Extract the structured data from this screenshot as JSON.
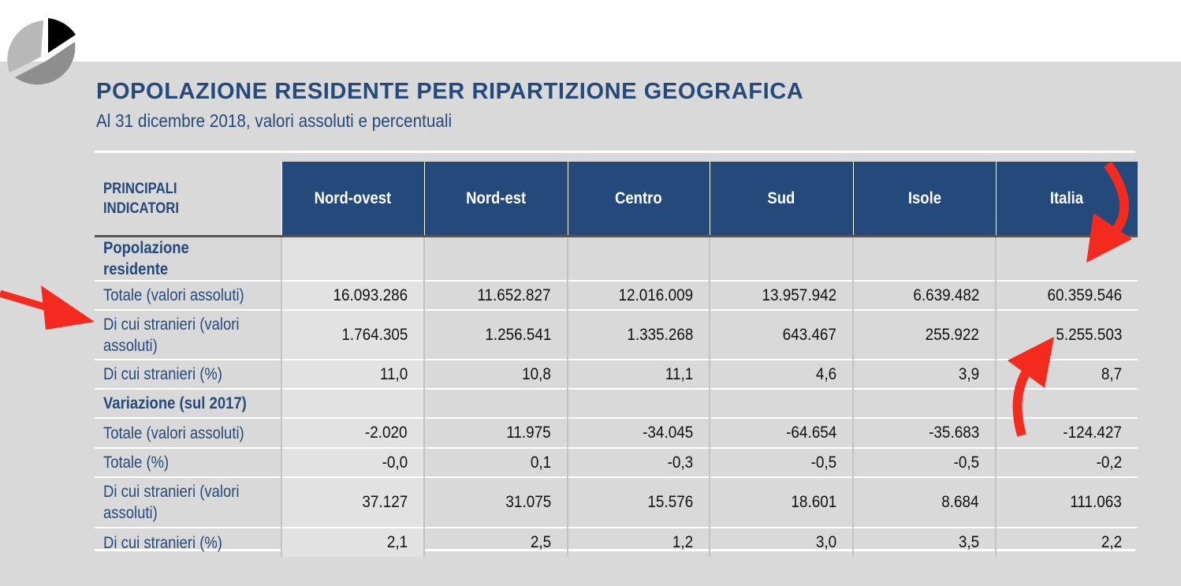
{
  "title": "POPOLAZIONE RESIDENTE PER RIPARTIZIONE GEOGRAFICA",
  "subtitle": "Al 31 dicembre 2018, valori assoluti e percentuali",
  "table": {
    "corner": "PRINCIPALI INDICATORI",
    "columns": [
      "Nord-ovest",
      "Nord-est",
      "Centro",
      "Sud",
      "Isole",
      "Italia"
    ],
    "rows": [
      {
        "label": "Popolazione residente",
        "section": true,
        "values": [
          "",
          "",
          "",
          "",
          "",
          ""
        ]
      },
      {
        "label": "Totale (valori assoluti)",
        "values": [
          "16.093.286",
          "11.652.827",
          "12.016.009",
          "13.957.942",
          "6.639.482",
          "60.359.546"
        ]
      },
      {
        "label": "Di cui stranieri (valori assoluti)",
        "values": [
          "1.764.305",
          "1.256.541",
          "1.335.268",
          "643.467",
          "255.922",
          "5.255.503"
        ]
      },
      {
        "label": "Di cui stranieri (%)",
        "values": [
          "11,0",
          "10,8",
          "11,1",
          "4,6",
          "3,9",
          "8,7"
        ]
      },
      {
        "label": "Variazione (sul 2017)",
        "section": true,
        "values": [
          "",
          "",
          "",
          "",
          "",
          ""
        ]
      },
      {
        "label": "Totale (valori assoluti)",
        "values": [
          "-2.020",
          "11.975",
          "-34.045",
          "-64.654",
          "-35.683",
          "-124.427"
        ]
      },
      {
        "label": "Totale (%)",
        "values": [
          "-0,0",
          "0,1",
          "-0,3",
          "-0,5",
          "-0,5",
          "-0,2"
        ]
      },
      {
        "label": "Di cui stranieri (valori assoluti)",
        "values": [
          "37.127",
          "31.075",
          "15.576",
          "18.601",
          "8.684",
          "111.063"
        ]
      },
      {
        "label": "Di cui stranieri (%)",
        "values": [
          "2,1",
          "2,5",
          "1,2",
          "3,0",
          "3,5",
          "2,2"
        ]
      }
    ]
  },
  "colors": {
    "header": "#234a7a",
    "panel": "#d9d9d9",
    "annotation_arrow": "#f42a1e"
  },
  "icons": [
    "pie-chart-icon"
  ]
}
